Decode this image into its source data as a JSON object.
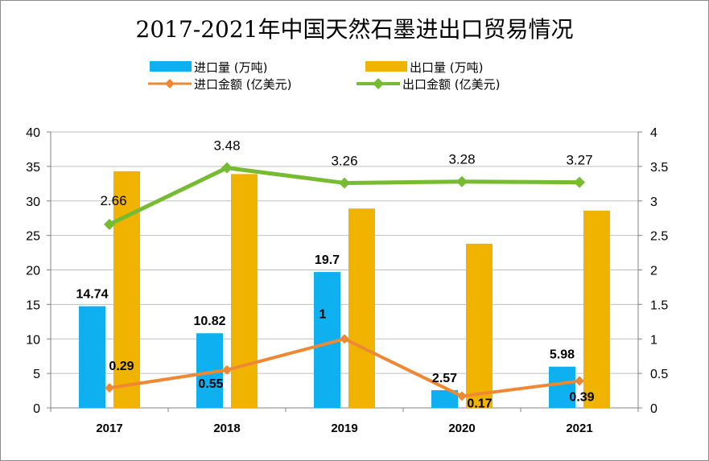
{
  "chart_data": {
    "type": "bar",
    "title": "2017-2021年中国天然石墨进出口贸易情况",
    "categories": [
      "2017",
      "2018",
      "2019",
      "2020",
      "2021"
    ],
    "y_left": {
      "ylim": [
        0,
        40
      ],
      "ticks": [
        "0",
        "5",
        "10",
        "15",
        "20",
        "25",
        "30",
        "35",
        "40"
      ]
    },
    "y_right": {
      "ylim": [
        0,
        4
      ],
      "ticks": [
        "0",
        "0.5",
        "1",
        "1.5",
        "2",
        "2.5",
        "3",
        "3.5",
        "4"
      ]
    },
    "grid": true,
    "legend_position": "top",
    "series": [
      {
        "name": "进口量 (万吨)",
        "type": "bar",
        "axis": "left",
        "color": "#0fb0f0",
        "values": [
          14.74,
          10.82,
          19.7,
          2.57,
          5.98
        ],
        "labels": [
          "14.74",
          "10.82",
          "19.7",
          "2.57",
          "5.98"
        ]
      },
      {
        "name": "出口量 (万吨)",
        "type": "bar",
        "axis": "left",
        "color": "#f0b400",
        "values": [
          34.3,
          33.9,
          28.9,
          23.8,
          28.6
        ],
        "labels": []
      },
      {
        "name": "进口金额 (亿美元)",
        "type": "line",
        "axis": "right",
        "color": "#ee8833",
        "values": [
          0.29,
          0.55,
          1,
          0.17,
          0.39
        ],
        "labels": [
          "0.29",
          "0.55",
          "1",
          "0.17",
          "0.39"
        ]
      },
      {
        "name": "出口金额 (亿美元)",
        "type": "line",
        "axis": "right",
        "color": "#77bb33",
        "values": [
          2.66,
          3.48,
          3.26,
          3.28,
          3.27
        ],
        "labels": [
          "2.66",
          "3.48",
          "3.26",
          "3.28",
          "3.27"
        ]
      }
    ]
  }
}
